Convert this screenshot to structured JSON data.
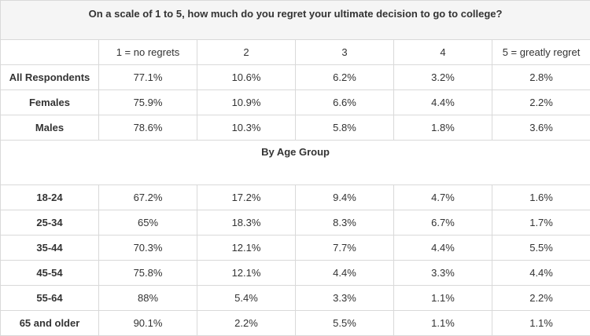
{
  "title": "On a scale of 1 to 5, how much do you regret your ultimate decision to go to college?",
  "columns": [
    "",
    "1 = no regrets",
    "2",
    "3",
    "4",
    "5 = greatly regret"
  ],
  "overall_rows": [
    {
      "label": "All Respondents",
      "values": [
        "77.1%",
        "10.6%",
        "6.2%",
        "3.2%",
        "2.8%"
      ]
    },
    {
      "label": "Females",
      "values": [
        "75.9%",
        "10.9%",
        "6.6%",
        "4.4%",
        "2.2%"
      ]
    },
    {
      "label": "Males",
      "values": [
        "78.6%",
        "10.3%",
        "5.8%",
        "1.8%",
        "3.6%"
      ]
    }
  ],
  "section_label": "By Age Group",
  "age_rows": [
    {
      "label": "18-24",
      "values": [
        "67.2%",
        "17.2%",
        "9.4%",
        "4.7%",
        "1.6%"
      ]
    },
    {
      "label": "25-34",
      "values": [
        "65%",
        "18.3%",
        "8.3%",
        "6.7%",
        "1.7%"
      ]
    },
    {
      "label": "35-44",
      "values": [
        "70.3%",
        "12.1%",
        "7.7%",
        "4.4%",
        "5.5%"
      ]
    },
    {
      "label": "45-54",
      "values": [
        "75.8%",
        "12.1%",
        "4.4%",
        "3.3%",
        "4.4%"
      ]
    },
    {
      "label": "55-64",
      "values": [
        "88%",
        "5.4%",
        "3.3%",
        "1.1%",
        "2.2%"
      ]
    },
    {
      "label": "65 and older",
      "values": [
        "90.1%",
        "2.2%",
        "5.5%",
        "1.1%",
        "1.1%"
      ]
    }
  ]
}
